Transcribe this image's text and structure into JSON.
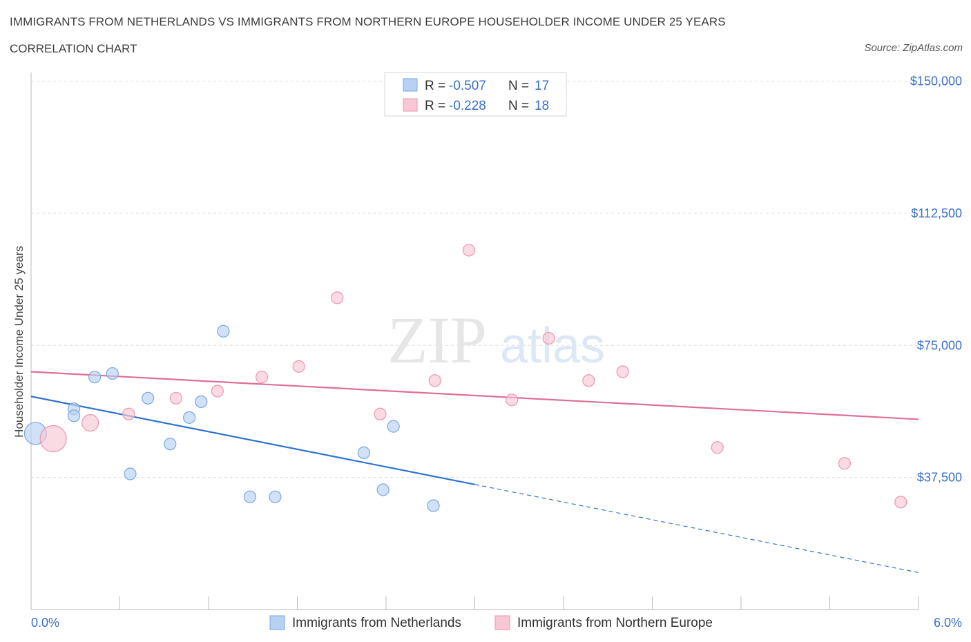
{
  "title": "IMMIGRANTS FROM NETHERLANDS VS IMMIGRANTS FROM NORTHERN EUROPE HOUSEHOLDER INCOME UNDER 25 YEARS",
  "subtitle": "CORRELATION CHART",
  "source": "Source: ZipAtlas.com",
  "watermark": {
    "zip": "ZIP",
    "atlas": "atlas"
  },
  "colors": {
    "blue_fill": "#b8d1f2",
    "blue_stroke": "#7aa6e0",
    "blue_line": "#2f72d2",
    "pink_fill": "#f8c6d4",
    "pink_stroke": "#ee95ae",
    "pink_line": "#e06e95",
    "tick_text": "#3a6fc9",
    "grid": "#dddddd"
  },
  "chart_data": {
    "type": "scatter",
    "title": "IMMIGRANTS FROM NETHERLANDS VS IMMIGRANTS FROM NORTHERN EUROPE HOUSEHOLDER INCOME UNDER 25 YEARS",
    "xlabel": "",
    "ylabel": "Householder Income Under 25 years",
    "xlim": [
      0,
      6
    ],
    "ylim": [
      0,
      150000
    ],
    "x_tick_labels": [
      "0.0%",
      "6.0%"
    ],
    "y_ticks": [
      37500,
      75000,
      112500,
      150000
    ],
    "y_tick_labels": [
      "$37,500",
      "$75,000",
      "$112,500",
      "$150,000"
    ],
    "legend": [
      {
        "r_label": "R = ",
        "r_value": "-0.507",
        "n_label": "N = ",
        "n_value": "17"
      },
      {
        "r_label": "R = ",
        "r_value": "-0.228",
        "n_label": "N = ",
        "n_value": "18"
      }
    ],
    "series": [
      {
        "name": "Immigrants from Netherlands",
        "color": "blue",
        "points": [
          {
            "x": 0.03,
            "y": 50000,
            "size": "large"
          },
          {
            "x": 0.29,
            "y": 57000,
            "size": "normal"
          },
          {
            "x": 0.29,
            "y": 55000,
            "size": "normal"
          },
          {
            "x": 0.43,
            "y": 66000,
            "size": "normal"
          },
          {
            "x": 0.55,
            "y": 67000,
            "size": "normal"
          },
          {
            "x": 0.67,
            "y": 38500,
            "size": "normal"
          },
          {
            "x": 0.79,
            "y": 60000,
            "size": "normal"
          },
          {
            "x": 0.94,
            "y": 47000,
            "size": "normal"
          },
          {
            "x": 1.07,
            "y": 54500,
            "size": "normal"
          },
          {
            "x": 1.15,
            "y": 59000,
            "size": "normal"
          },
          {
            "x": 1.3,
            "y": 79000,
            "size": "normal"
          },
          {
            "x": 1.48,
            "y": 32000,
            "size": "normal"
          },
          {
            "x": 1.65,
            "y": 32000,
            "size": "normal"
          },
          {
            "x": 2.25,
            "y": 44500,
            "size": "normal"
          },
          {
            "x": 2.38,
            "y": 34000,
            "size": "normal"
          },
          {
            "x": 2.45,
            "y": 52000,
            "size": "normal"
          },
          {
            "x": 2.72,
            "y": 29500,
            "size": "normal"
          }
        ],
        "trend": {
          "x0": 0,
          "y0": 60500,
          "x1": 3.0,
          "y1": 35500,
          "dash_x1": 6.0,
          "dash_y1": 10500
        }
      },
      {
        "name": "Immigrants from Northern Europe",
        "color": "pink",
        "points": [
          {
            "x": 0.15,
            "y": 48500,
            "size": "xlarge"
          },
          {
            "x": 0.4,
            "y": 53000,
            "size": "medium"
          },
          {
            "x": 0.66,
            "y": 55500,
            "size": "normal"
          },
          {
            "x": 0.98,
            "y": 60000,
            "size": "normal"
          },
          {
            "x": 1.26,
            "y": 62000,
            "size": "normal"
          },
          {
            "x": 1.56,
            "y": 66000,
            "size": "normal"
          },
          {
            "x": 1.81,
            "y": 69000,
            "size": "normal"
          },
          {
            "x": 2.07,
            "y": 88500,
            "size": "normal"
          },
          {
            "x": 2.36,
            "y": 55500,
            "size": "normal"
          },
          {
            "x": 2.73,
            "y": 65000,
            "size": "normal"
          },
          {
            "x": 2.96,
            "y": 102000,
            "size": "normal"
          },
          {
            "x": 3.25,
            "y": 59500,
            "size": "normal"
          },
          {
            "x": 3.5,
            "y": 77000,
            "size": "normal"
          },
          {
            "x": 3.77,
            "y": 65000,
            "size": "normal"
          },
          {
            "x": 4.0,
            "y": 67500,
            "size": "normal"
          },
          {
            "x": 4.64,
            "y": 46000,
            "size": "normal"
          },
          {
            "x": 5.5,
            "y": 41500,
            "size": "normal"
          },
          {
            "x": 5.88,
            "y": 30500,
            "size": "normal"
          }
        ],
        "trend": {
          "x0": 0,
          "y0": 67500,
          "x1": 6.0,
          "y1": 54000
        }
      }
    ]
  }
}
